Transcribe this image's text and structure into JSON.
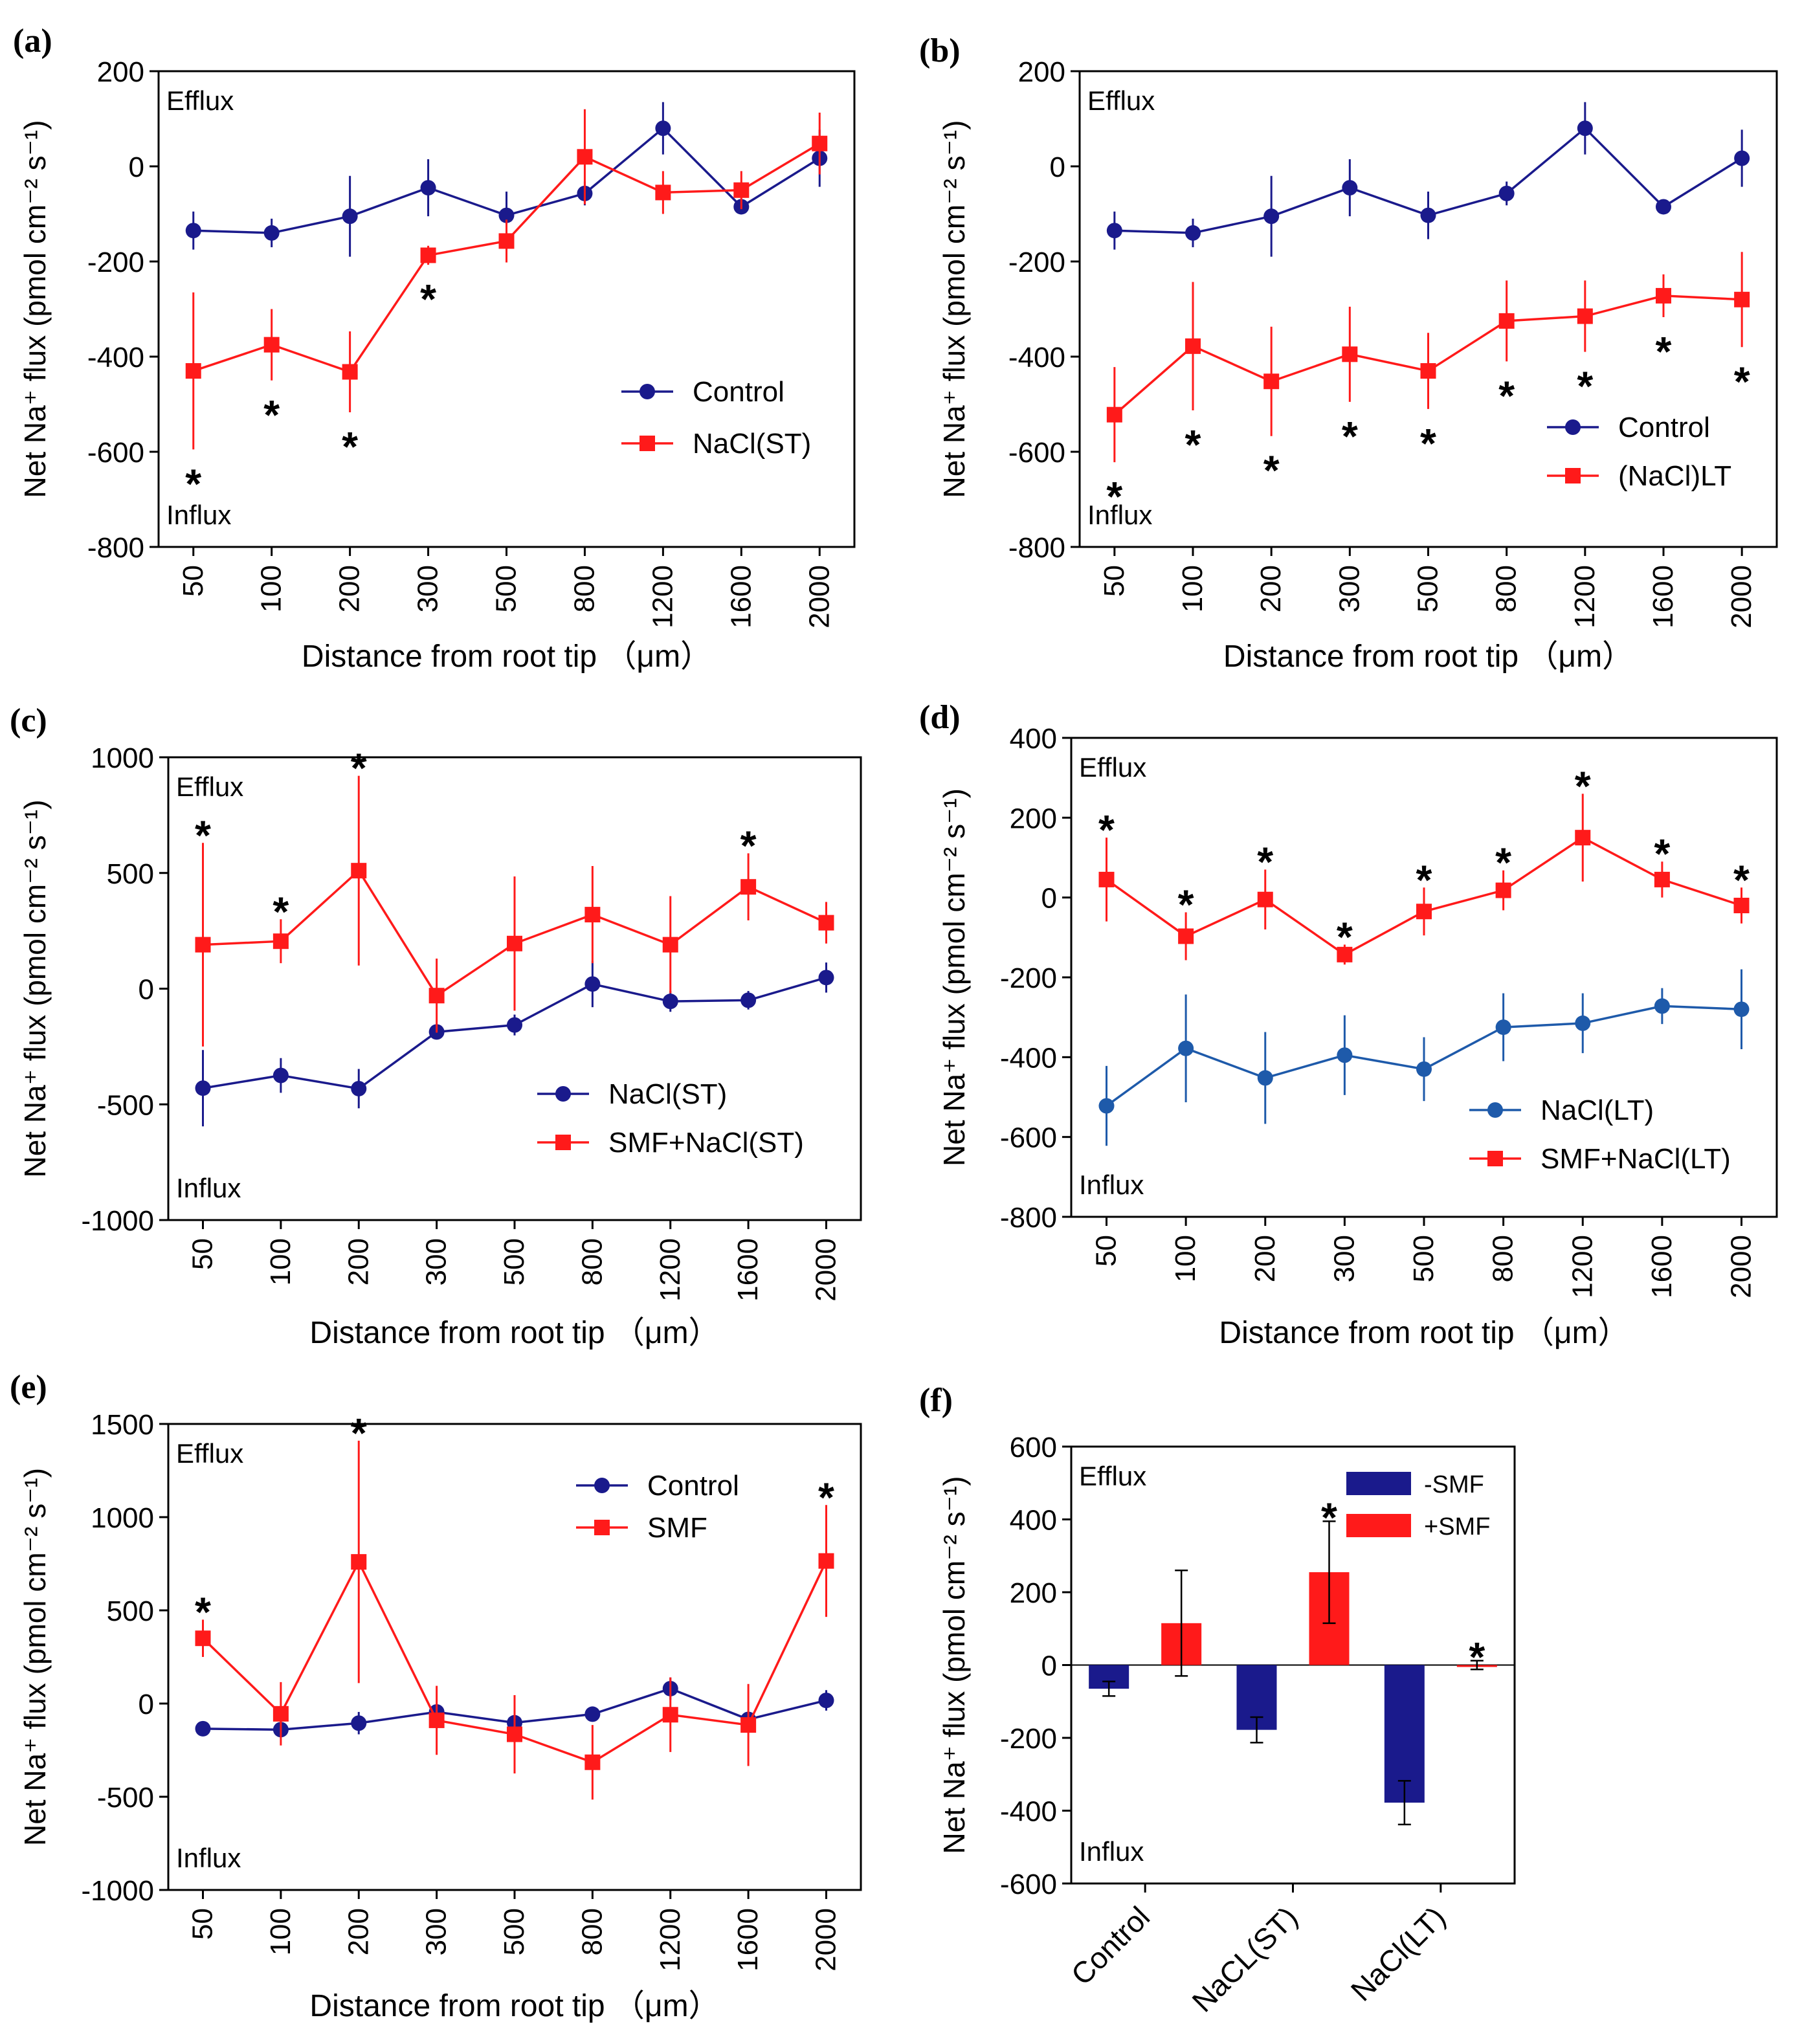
{
  "panels": [
    {
      "id": "a",
      "label": "(a)",
      "type": "line",
      "x_label": "Distance from root tip （μm）",
      "y_label": "Net Na⁺ flux (pmol cm⁻² s⁻¹)",
      "efflux_label": "Efflux",
      "influx_label": "Influx",
      "categories": [
        "50",
        "100",
        "200",
        "300",
        "500",
        "800",
        "1200",
        "1600",
        "2000"
      ],
      "ylim": [
        -800,
        200
      ],
      "yticks": [
        200,
        0,
        -200,
        -400,
        -600,
        -800
      ],
      "legend_position": "lower-right",
      "series": [
        {
          "name": "Control",
          "color": "#1a1a8c",
          "marker": "circle",
          "values": [
            -135,
            -140,
            -105,
            -45,
            -103,
            -57,
            80,
            -85,
            17
          ],
          "errors": [
            40,
            30,
            85,
            60,
            50,
            25,
            55,
            10,
            60
          ],
          "stars": [
            false,
            false,
            false,
            false,
            false,
            false,
            false,
            false,
            false
          ]
        },
        {
          "name": "NaCl(ST)",
          "color": "#ff1a1a",
          "marker": "square",
          "values": [
            -430,
            -375,
            -432,
            -187,
            -157,
            20,
            -55,
            -50,
            48
          ],
          "errors": [
            165,
            75,
            85,
            20,
            45,
            100,
            45,
            40,
            65
          ],
          "stars": [
            true,
            true,
            true,
            true,
            false,
            false,
            false,
            false,
            false
          ]
        }
      ]
    },
    {
      "id": "b",
      "label": "(b)",
      "type": "line",
      "x_label": "Distance from root tip （μm）",
      "y_label": "Net Na⁺ flux (pmol cm⁻² s⁻¹)",
      "efflux_label": "Efflux",
      "influx_label": "Influx",
      "categories": [
        "50",
        "100",
        "200",
        "300",
        "500",
        "800",
        "1200",
        "1600",
        "2000"
      ],
      "ylim": [
        -800,
        200
      ],
      "yticks": [
        200,
        0,
        -200,
        -400,
        -600,
        -800
      ],
      "legend_position": "lower-right",
      "series": [
        {
          "name": "Control",
          "color": "#1a1a8c",
          "marker": "circle",
          "values": [
            -135,
            -140,
            -105,
            -45,
            -103,
            -57,
            80,
            -85,
            17
          ],
          "errors": [
            40,
            30,
            85,
            60,
            50,
            25,
            55,
            10,
            60
          ],
          "stars": [
            false,
            false,
            false,
            false,
            false,
            false,
            false,
            false,
            false
          ]
        },
        {
          "name": "(NaCl)LT",
          "color": "#ff1a1a",
          "marker": "square",
          "values": [
            -522,
            -378,
            -452,
            -395,
            -430,
            -325,
            -315,
            -272,
            -280
          ],
          "errors": [
            100,
            135,
            115,
            100,
            80,
            85,
            75,
            45,
            100
          ],
          "stars": [
            true,
            true,
            true,
            true,
            true,
            true,
            true,
            true,
            true
          ]
        }
      ]
    },
    {
      "id": "c",
      "label": "(c)",
      "type": "line",
      "x_label": "Distance from root tip （μm）",
      "y_label": "Net Na⁺ flux (pmol cm⁻² s⁻¹)",
      "efflux_label": "Efflux",
      "influx_label": "Influx",
      "categories": [
        "50",
        "100",
        "200",
        "300",
        "500",
        "800",
        "1200",
        "1600",
        "2000"
      ],
      "ylim": [
        -1000,
        1000
      ],
      "yticks": [
        1000,
        500,
        0,
        -500,
        -1000
      ],
      "legend_position": "lower-right",
      "series": [
        {
          "name": "NaCl(ST)",
          "color": "#1a1a8c",
          "marker": "circle",
          "values": [
            -430,
            -375,
            -432,
            -187,
            -157,
            20,
            -55,
            -50,
            48
          ],
          "errors": [
            165,
            75,
            85,
            20,
            45,
            100,
            45,
            40,
            65
          ],
          "stars": [
            false,
            false,
            false,
            false,
            false,
            false,
            false,
            false,
            false
          ]
        },
        {
          "name": "SMF+NaCl(ST)",
          "color": "#ff1a1a",
          "marker": "square",
          "values": [
            190,
            205,
            510,
            -30,
            195,
            320,
            190,
            440,
            285
          ],
          "errors": [
            440,
            95,
            410,
            160,
            290,
            210,
            210,
            145,
            90
          ],
          "stars": [
            true,
            true,
            true,
            false,
            false,
            false,
            false,
            true,
            false
          ]
        }
      ]
    },
    {
      "id": "d",
      "label": "(d)",
      "type": "line",
      "x_label": "Distance from root tip （μm）",
      "y_label": "Net Na⁺ flux (pmol cm⁻² s⁻¹)",
      "efflux_label": "Efflux",
      "influx_label": "Influx",
      "categories": [
        "50",
        "100",
        "200",
        "300",
        "500",
        "800",
        "1200",
        "1600",
        "2000"
      ],
      "ylim": [
        -800,
        400
      ],
      "yticks": [
        400,
        200,
        0,
        -200,
        -400,
        -600,
        -800
      ],
      "legend_position": "lower-right",
      "series": [
        {
          "name": "NaCl(LT)",
          "color": "#1e5aaa",
          "marker": "circle",
          "values": [
            -522,
            -378,
            -452,
            -395,
            -430,
            -325,
            -315,
            -272,
            -280
          ],
          "errors": [
            100,
            135,
            115,
            100,
            80,
            85,
            75,
            45,
            100
          ],
          "stars": [
            false,
            false,
            false,
            false,
            false,
            false,
            false,
            false,
            false
          ]
        },
        {
          "name": "SMF+NaCl(LT)",
          "color": "#ff1a1a",
          "marker": "square",
          "values": [
            45,
            -97,
            -5,
            -143,
            -35,
            18,
            150,
            45,
            -20
          ],
          "errors": [
            105,
            60,
            75,
            25,
            60,
            50,
            110,
            45,
            45
          ],
          "stars": [
            true,
            true,
            true,
            true,
            true,
            true,
            true,
            true,
            true
          ]
        }
      ]
    },
    {
      "id": "e",
      "label": "(e)",
      "type": "line",
      "x_label": "Distance from root tip （μm）",
      "y_label": "Net Na⁺ flux (pmol cm⁻² s⁻¹)",
      "efflux_label": "Efflux",
      "influx_label": "Influx",
      "categories": [
        "50",
        "100",
        "200",
        "300",
        "500",
        "800",
        "1200",
        "1600",
        "2000"
      ],
      "ylim": [
        -1000,
        1500
      ],
      "yticks": [
        1500,
        1000,
        500,
        0,
        -500,
        -1000
      ],
      "legend_position": "top-right",
      "series": [
        {
          "name": "Control",
          "color": "#1a1a8c",
          "marker": "circle",
          "values": [
            -135,
            -140,
            -105,
            -45,
            -103,
            -57,
            80,
            -85,
            17
          ],
          "errors": [
            15,
            15,
            60,
            30,
            20,
            15,
            60,
            15,
            55
          ],
          "stars": [
            false,
            false,
            false,
            false,
            false,
            false,
            false,
            false,
            false
          ]
        },
        {
          "name": "SMF",
          "color": "#ff1a1a",
          "marker": "square",
          "values": [
            350,
            -55,
            760,
            -90,
            -165,
            -315,
            -60,
            -115,
            765
          ],
          "errors": [
            100,
            170,
            650,
            185,
            210,
            200,
            200,
            220,
            300
          ],
          "stars": [
            true,
            false,
            true,
            false,
            false,
            false,
            false,
            false,
            true
          ]
        }
      ]
    },
    {
      "id": "f",
      "label": "(f)",
      "type": "bar",
      "x_label": "",
      "y_label": "Net Na⁺ flux (pmol cm⁻² s⁻¹)",
      "efflux_label": "Efflux",
      "influx_label": "Influx",
      "categories": [
        "Control",
        "NaCL(ST)",
        "NaCl(LT)"
      ],
      "ylim": [
        -600,
        600
      ],
      "yticks": [
        600,
        400,
        200,
        0,
        -200,
        -400,
        -600
      ],
      "legend_position": "top-right",
      "series": [
        {
          "name": "-SMF",
          "color": "#1a1a8c",
          "values": [
            -65,
            -178,
            -378
          ],
          "errors": [
            20,
            35,
            60
          ],
          "stars": [
            false,
            false,
            false
          ]
        },
        {
          "name": "+SMF",
          "color": "#ff1a1a",
          "values": [
            115,
            255,
            0
          ],
          "errors": [
            145,
            140,
            12
          ],
          "stars": [
            false,
            true,
            true
          ]
        }
      ]
    }
  ]
}
